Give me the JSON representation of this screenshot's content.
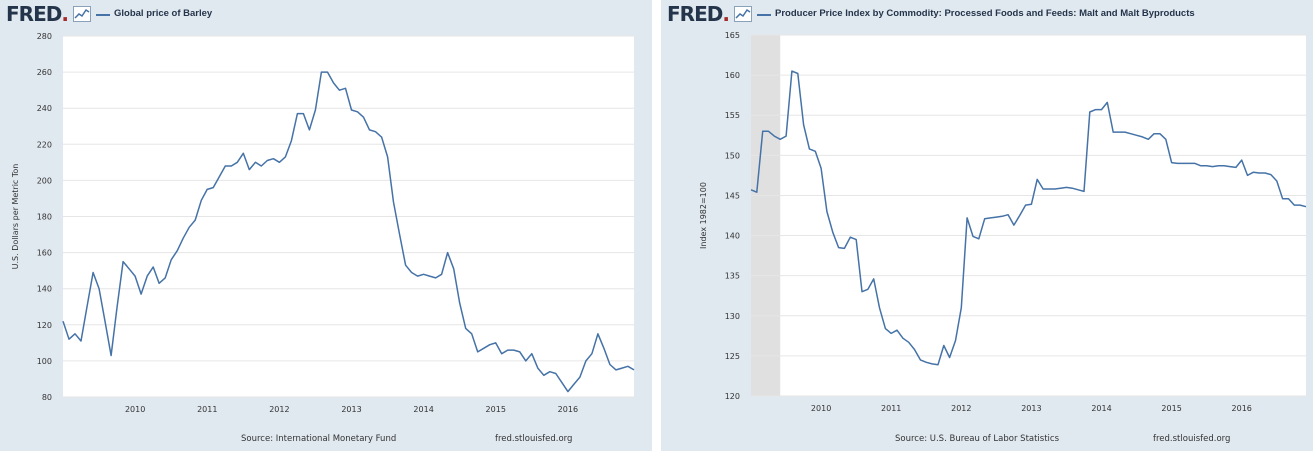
{
  "colors": {
    "series": "#4572a7",
    "panel_bg": "#e1e9f0",
    "plot_bg": "#ffffff",
    "grid": "#e6e6e6",
    "recession_shade": "#e0e0e0",
    "logo": "#24344a",
    "logo_dot": "#a52a2a"
  },
  "panels": [
    {
      "logo": "FRED",
      "logo_icon": "chart-line-icon",
      "title": "Global price of Barley",
      "source": "Source: International Monetary Fund",
      "site": "fred.stlouisfed.org",
      "ylabel": "U.S. Dollars per Metric Ton"
    },
    {
      "logo": "FRED",
      "logo_icon": "chart-line-icon",
      "title": "Producer Price Index by Commodity: Processed Foods and Feeds: Malt and Malt Byproducts",
      "source": "Source: U.S. Bureau of Labor Statistics",
      "site": "fred.stlouisfed.org",
      "ylabel": "Index 1982=100"
    }
  ],
  "chart_data": [
    {
      "type": "line",
      "title": "Global price of Barley",
      "xlabel": "",
      "ylabel": "U.S. Dollars per Metric Ton",
      "xlim": [
        2009.0,
        2016.917
      ],
      "ylim": [
        80,
        280
      ],
      "x_ticks": [
        2010,
        2011,
        2012,
        2013,
        2014,
        2015,
        2016
      ],
      "y_ticks": [
        80,
        100,
        120,
        140,
        160,
        180,
        200,
        220,
        240,
        260,
        280
      ],
      "grid": true,
      "series": [
        {
          "name": "Global price of Barley",
          "x": [
            2009.0,
            2009.083,
            2009.167,
            2009.25,
            2009.333,
            2009.417,
            2009.5,
            2009.583,
            2009.667,
            2009.75,
            2009.833,
            2009.917,
            2010.0,
            2010.083,
            2010.167,
            2010.25,
            2010.333,
            2010.417,
            2010.5,
            2010.583,
            2010.667,
            2010.75,
            2010.833,
            2010.917,
            2011.0,
            2011.083,
            2011.167,
            2011.25,
            2011.333,
            2011.417,
            2011.5,
            2011.583,
            2011.667,
            2011.75,
            2011.833,
            2011.917,
            2012.0,
            2012.083,
            2012.167,
            2012.25,
            2012.333,
            2012.417,
            2012.5,
            2012.583,
            2012.667,
            2012.75,
            2012.833,
            2012.917,
            2013.0,
            2013.083,
            2013.167,
            2013.25,
            2013.333,
            2013.417,
            2013.5,
            2013.583,
            2013.667,
            2013.75,
            2013.833,
            2013.917,
            2014.0,
            2014.083,
            2014.167,
            2014.25,
            2014.333,
            2014.417,
            2014.5,
            2014.583,
            2014.667,
            2014.75,
            2014.833,
            2014.917,
            2015.0,
            2015.083,
            2015.167,
            2015.25,
            2015.333,
            2015.417,
            2015.5,
            2015.583,
            2015.667,
            2015.75,
            2015.833,
            2015.917,
            2016.0,
            2016.083,
            2016.167,
            2016.25,
            2016.333,
            2016.417,
            2016.5,
            2016.583,
            2016.667,
            2016.75,
            2016.833,
            2016.917
          ],
          "y": [
            122,
            112,
            115,
            111,
            130,
            149,
            140,
            122,
            103,
            130,
            155,
            151,
            147,
            137,
            147,
            152,
            143,
            146,
            156,
            161,
            168,
            174,
            178,
            189,
            195,
            196,
            202,
            208,
            208,
            210,
            215,
            206,
            210,
            208,
            211,
            212,
            210,
            213,
            222,
            237,
            237,
            228,
            239,
            260,
            260,
            254,
            250,
            251,
            239,
            238,
            235,
            228,
            227,
            224,
            213,
            188,
            170,
            153,
            149,
            147,
            148,
            147,
            146,
            148,
            160,
            151,
            132,
            118,
            115,
            105,
            107,
            109,
            110,
            104,
            106,
            106,
            105,
            100,
            104,
            96,
            92,
            94,
            93,
            88,
            83,
            87,
            91,
            100,
            104,
            115,
            107,
            98,
            95,
            96,
            97,
            95
          ]
        }
      ]
    },
    {
      "type": "line",
      "title": "Producer Price Index by Commodity: Processed Foods and Feeds: Malt and Malt Byproducts",
      "xlabel": "",
      "ylabel": "Index 1982=100",
      "xlim": [
        2009.0,
        2016.917
      ],
      "ylim": [
        120,
        165
      ],
      "x_ticks": [
        2010,
        2011,
        2012,
        2013,
        2014,
        2015,
        2016
      ],
      "y_ticks": [
        120,
        125,
        130,
        135,
        140,
        145,
        150,
        155,
        160,
        165
      ],
      "grid": true,
      "recession": [
        2009.0,
        2009.417
      ],
      "series": [
        {
          "name": "Producer Price Index by Commodity: Processed Foods and Feeds: Malt and Malt Byproducts",
          "x": [
            2009.0,
            2009.083,
            2009.167,
            2009.25,
            2009.333,
            2009.417,
            2009.5,
            2009.583,
            2009.667,
            2009.75,
            2009.833,
            2009.917,
            2010.0,
            2010.083,
            2010.167,
            2010.25,
            2010.333,
            2010.417,
            2010.5,
            2010.583,
            2010.667,
            2010.75,
            2010.833,
            2010.917,
            2011.0,
            2011.083,
            2011.167,
            2011.25,
            2011.333,
            2011.417,
            2011.5,
            2011.583,
            2011.667,
            2011.75,
            2011.833,
            2011.917,
            2012.0,
            2012.083,
            2012.167,
            2012.25,
            2012.333,
            2012.417,
            2012.5,
            2012.583,
            2012.667,
            2012.75,
            2012.833,
            2012.917,
            2013.0,
            2013.083,
            2013.167,
            2013.25,
            2013.333,
            2013.417,
            2013.5,
            2013.583,
            2013.667,
            2013.75,
            2013.833,
            2013.917,
            2014.0,
            2014.083,
            2014.167,
            2014.25,
            2014.333,
            2014.417,
            2014.5,
            2014.583,
            2014.667,
            2014.75,
            2014.833,
            2014.917,
            2015.0,
            2015.083,
            2015.167,
            2015.25,
            2015.333,
            2015.417,
            2015.5,
            2015.583,
            2015.667,
            2015.75,
            2015.833,
            2015.917,
            2016.0,
            2016.083,
            2016.167,
            2016.25,
            2016.333,
            2016.417,
            2016.5,
            2016.583,
            2016.667,
            2016.75,
            2016.833,
            2016.917
          ],
          "y": [
            145.7,
            145.4,
            153.0,
            153.0,
            152.4,
            152.0,
            152.4,
            160.5,
            160.2,
            153.8,
            150.8,
            150.5,
            148.4,
            143.0,
            140.4,
            138.5,
            138.4,
            139.8,
            139.5,
            133.0,
            133.3,
            134.6,
            131.0,
            128.4,
            127.8,
            128.2,
            127.2,
            126.7,
            125.8,
            124.5,
            124.2,
            124.0,
            123.9,
            126.3,
            124.8,
            126.9,
            131.0,
            142.2,
            139.9,
            139.6,
            142.1,
            142.2,
            142.3,
            142.4,
            142.6,
            141.3,
            142.5,
            143.8,
            143.9,
            147.0,
            145.8,
            145.8,
            145.8,
            145.9,
            146.0,
            145.9,
            145.7,
            145.5,
            155.4,
            155.7,
            155.7,
            156.6,
            152.9,
            152.9,
            152.9,
            152.7,
            152.5,
            152.3,
            152.0,
            152.7,
            152.7,
            152.0,
            149.1,
            149.0,
            149.0,
            149.0,
            149.0,
            148.7,
            148.7,
            148.6,
            148.7,
            148.7,
            148.6,
            148.5,
            149.4,
            147.5,
            147.9,
            147.8,
            147.8,
            147.6,
            146.8,
            144.6,
            144.6,
            143.8,
            143.8,
            143.6
          ]
        }
      ]
    }
  ]
}
